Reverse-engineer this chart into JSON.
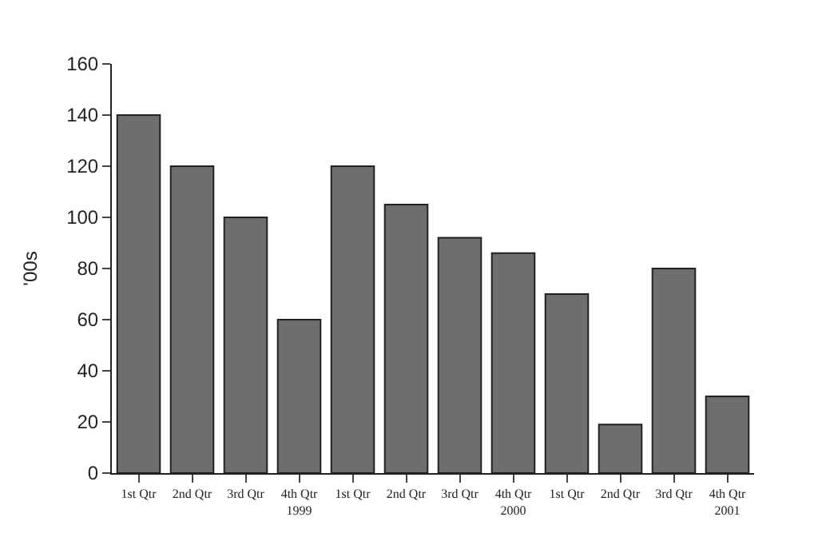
{
  "chart_data": {
    "type": "bar",
    "ylabel": "'00s",
    "categories": [
      "1st Qtr",
      "2nd Qtr",
      "3rd Qtr",
      "4th Qtr\n1999",
      "1st Qtr",
      "2nd Qtr",
      "3rd Qtr",
      "4th Qtr\n2000",
      "1st Qtr",
      "2nd Qtr",
      "3rd Qtr",
      "4th Qtr\n2001"
    ],
    "values": [
      140,
      120,
      100,
      60,
      120,
      105,
      92,
      86,
      70,
      19,
      80,
      30
    ],
    "color": "#6e6e6e",
    "ylim": [
      0,
      160
    ],
    "yticks": [
      0,
      20,
      40,
      60,
      80,
      100,
      120,
      140,
      160
    ],
    "legend": false
  }
}
